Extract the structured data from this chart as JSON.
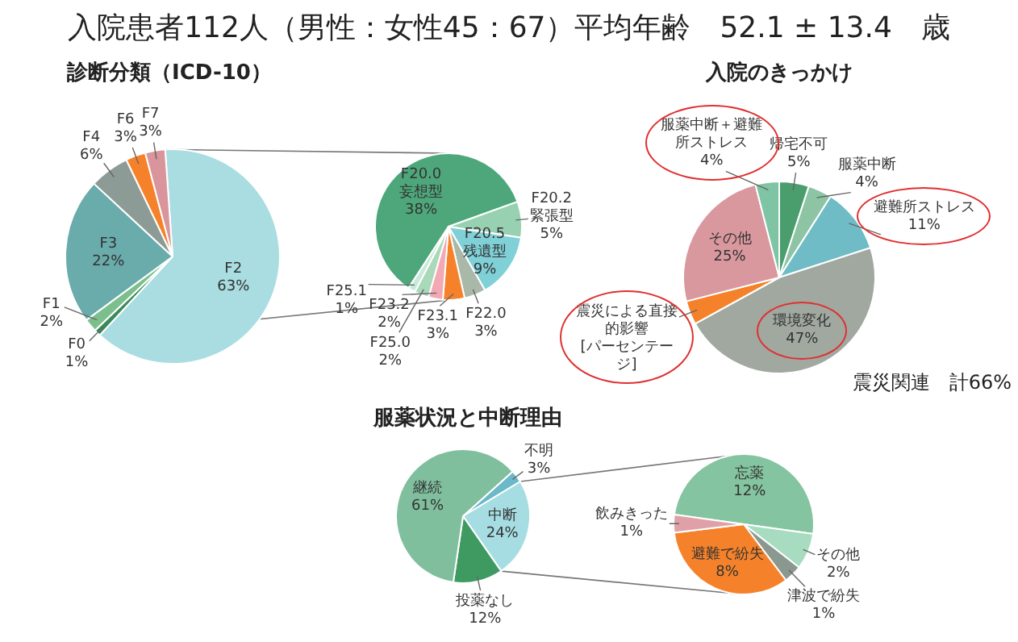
{
  "chart_data": [
    {
      "type": "other",
      "title": "入院患者112人（男性：女性45：67）平均年齢　52.1 ± 13.4　歳"
    },
    {
      "type": "pie",
      "title": "診断分類（ICD-10）",
      "categories": [
        "F2",
        "F0",
        "F1",
        "F3",
        "F4",
        "F6",
        "F7"
      ],
      "values": [
        63,
        1,
        2,
        22,
        6,
        3,
        3
      ],
      "value_labels": [
        "63%",
        "1%",
        "2%",
        "22%",
        "6%",
        "3%",
        "3%"
      ],
      "colors": [
        "#a9dde1",
        "#3b8a5b",
        "#7cbf8d",
        "#6aabab",
        "#8d9b97",
        "#f5822a",
        "#d9959b"
      ]
    },
    {
      "type": "pie",
      "categories": [
        "F20.0 妄想型",
        "F20.2 緊張型",
        "F20.5 残遺型",
        "F22.0",
        "F23.1",
        "F23.2",
        "F25.0",
        "F25.1"
      ],
      "values": [
        38,
        5,
        9,
        3,
        3,
        2,
        2,
        1
      ],
      "value_labels": [
        "38%",
        "5%",
        "9%",
        "3%",
        "3%",
        "2%",
        "2%",
        "1%"
      ],
      "colors": [
        "#4ea77b",
        "#97d1b1",
        "#80d0d8",
        "#a9b8a9",
        "#f5822a",
        "#f2a9b4",
        "#a9d9b9",
        "#c9e9d9"
      ]
    },
    {
      "type": "pie",
      "title": "入院のきっかけ",
      "categories": [
        "帰宅不可",
        "服薬中断",
        "避難所ストレス",
        "環境変化",
        "震災による直接的影響",
        "その他",
        "服薬中断＋避難所ストレス"
      ],
      "values": [
        5,
        4,
        11,
        47,
        4,
        25,
        4
      ],
      "value_labels": [
        "5%",
        "4%",
        "11%",
        "47%",
        "[パーセンテージ]",
        "25%",
        "4%"
      ],
      "colors": [
        "#4a9e6e",
        "#8cc4a4",
        "#6fbcc6",
        "#a0a8a0",
        "#f5822a",
        "#d9989e",
        "#7fc4a4"
      ],
      "annotations": [
        "震災関連　計66%"
      ]
    },
    {
      "type": "pie",
      "title": "服薬状況と中断理由",
      "categories": [
        "不明",
        "中断",
        "投薬なし",
        "継続"
      ],
      "values": [
        3,
        24,
        12,
        61
      ],
      "value_labels": [
        "3%",
        "24%",
        "12%",
        "61%"
      ],
      "colors": [
        "#6bb8c8",
        "#a6dde3",
        "#3f9a62",
        "#7fbf9e"
      ]
    },
    {
      "type": "pie",
      "categories": [
        "忘薬",
        "その他",
        "津波で紛失",
        "避難で紛失",
        "飲みきった"
      ],
      "values": [
        12,
        2,
        1,
        8,
        1
      ],
      "value_labels": [
        "12%",
        "2%",
        "1%",
        "8%",
        "1%"
      ],
      "colors": [
        "#84c4a0",
        "#a8dcc0",
        "#8a9890",
        "#f5822a",
        "#e0a0a8"
      ]
    }
  ]
}
